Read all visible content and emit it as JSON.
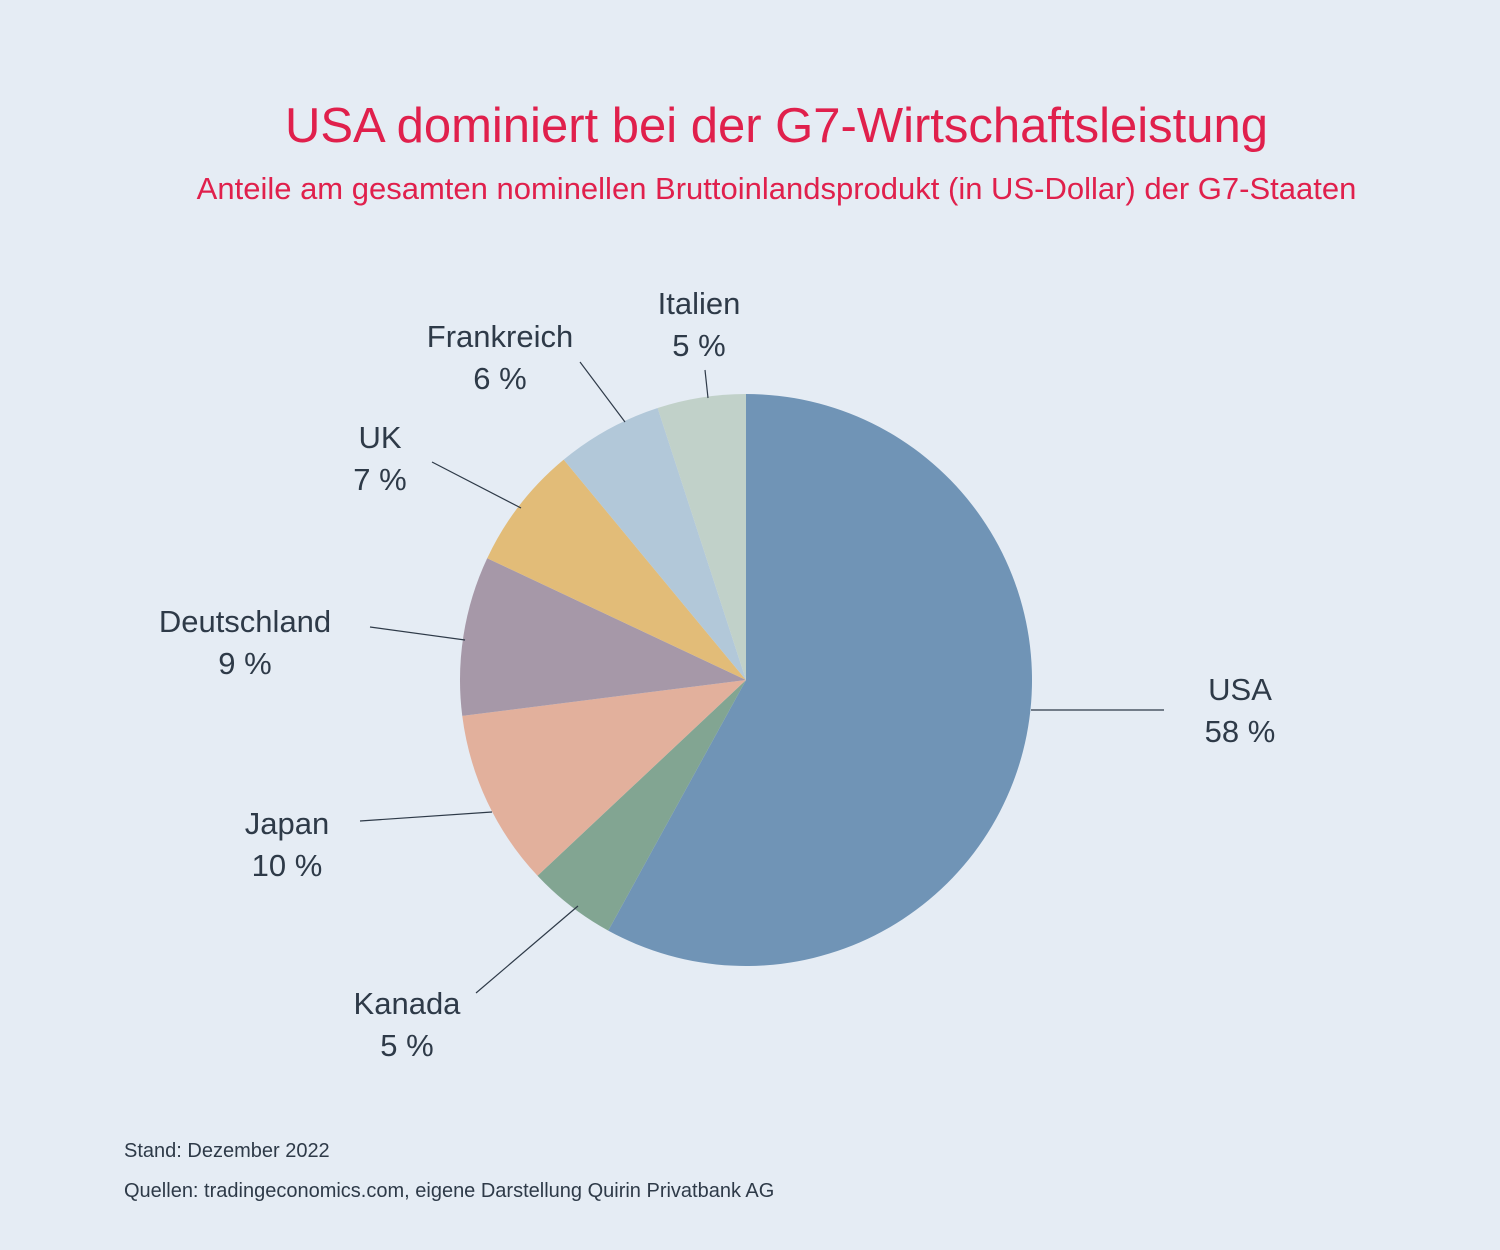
{
  "header": {
    "title": "USA dominiert bei der G7-Wirtschaftsleistung",
    "subtitle": "Anteile am gesamten nominellen Bruttoinlandsprodukt (in US-Dollar) der G7-Staaten"
  },
  "chart_data": {
    "type": "pie",
    "title": "USA dominiert bei der G7-Wirtschaftsleistung",
    "subtitle": "Anteile am gesamten nominellen Bruttoinlandsprodukt (in US-Dollar) der G7-Staaten",
    "unit": "%",
    "slices": [
      {
        "name": "USA",
        "value": 58,
        "label": "58 %",
        "color": "#7094b6"
      },
      {
        "name": "Kanada",
        "value": 5,
        "label": "5 %",
        "color": "#82a592"
      },
      {
        "name": "Japan",
        "value": 10,
        "label": "10 %",
        "color": "#e2b09c"
      },
      {
        "name": "Deutschland",
        "value": 9,
        "label": "9 %",
        "color": "#a698a8"
      },
      {
        "name": "UK",
        "value": 7,
        "label": "7 %",
        "color": "#e2bc78"
      },
      {
        "name": "Frankreich",
        "value": 6,
        "label": "6 %",
        "color": "#b2c8d9"
      },
      {
        "name": "Italien",
        "value": 5,
        "label": "5 %",
        "color": "#c1d1c9"
      }
    ]
  },
  "footer": {
    "stand": "Stand: Dezember 2022",
    "sources": "Quellen: tradingeconomics.com, eigene Darstellung Quirin Privatbank AG"
  }
}
